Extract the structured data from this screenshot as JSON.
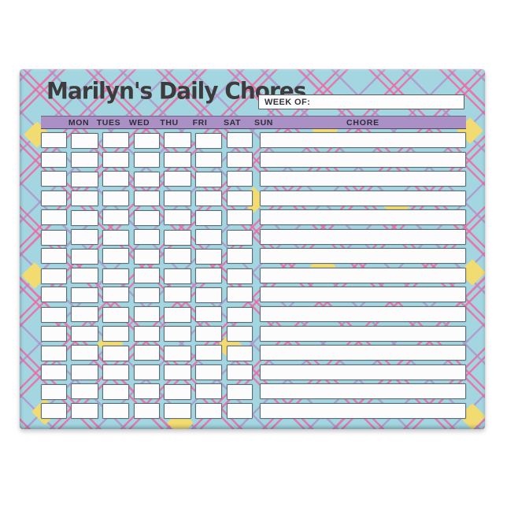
{
  "pad": {
    "title": "Marilyn's Daily Chores",
    "week_of_label": "WEEK OF:",
    "colors": {
      "paper_blue": "#a3d6e0",
      "plaid_pink": "#ee69a3",
      "plaid_lavender": "#b08ec9",
      "diamond_yellow": "#f2db70",
      "header_bar_purple": "#ab90c5",
      "title_text": "#3c3c3c",
      "cell_fill": "#fcfcfd",
      "cell_border": "#5c6b78"
    }
  },
  "grid": {
    "day_headers": [
      "MON",
      "TUES",
      "WED",
      "THU",
      "FRI",
      "SAT",
      "SUN"
    ],
    "chore_header": "CHORE",
    "row_count": 15,
    "column_count": 7
  }
}
